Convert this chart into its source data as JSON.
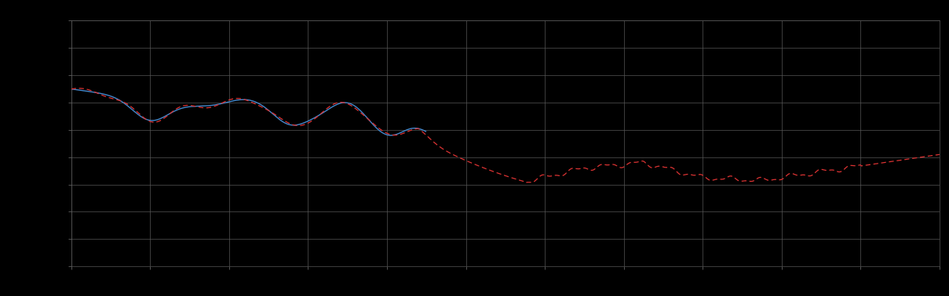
{
  "background_color": "#000000",
  "plot_bg_color": "#000000",
  "grid_color": "#555555",
  "line1_color": "#4488CC",
  "line2_color": "#DD3333",
  "figsize": [
    12.09,
    3.78
  ],
  "dpi": 100,
  "xlim": [
    0,
    220
  ],
  "ylim": [
    0,
    18
  ],
  "x_tick_interval": 20,
  "y_tick_interval": 2
}
